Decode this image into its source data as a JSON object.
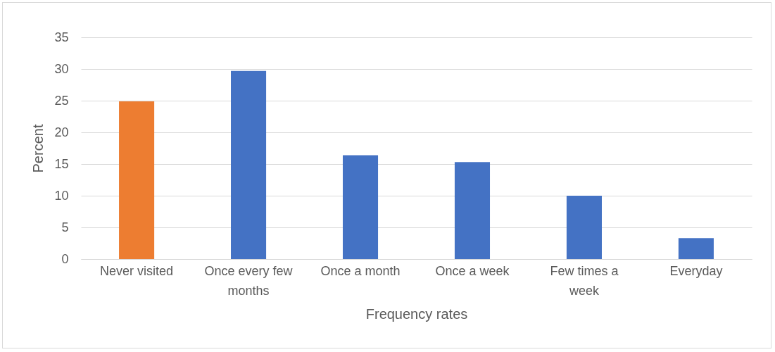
{
  "chart_data": {
    "type": "bar",
    "xlabel": "Frequency rates",
    "ylabel": "Percent",
    "categories": [
      "Never visited",
      "Once every few months",
      "Once a month",
      "Once a week",
      "Few times a week",
      "Everyday"
    ],
    "values": [
      24.9,
      29.7,
      16.4,
      15.3,
      10.0,
      3.3
    ],
    "colors": [
      "#ed7d31",
      "#4472c4",
      "#4472c4",
      "#4472c4",
      "#4472c4",
      "#4472c4"
    ],
    "ylim": [
      0,
      35
    ],
    "yticks": [
      0,
      5,
      10,
      15,
      20,
      25,
      30,
      35
    ],
    "grid": "y",
    "legend": false
  }
}
